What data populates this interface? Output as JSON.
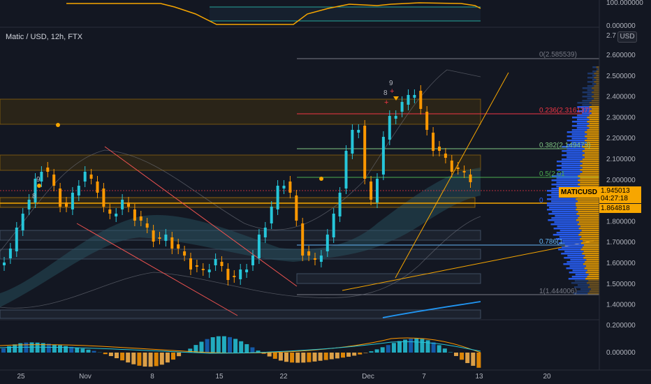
{
  "symbol_title": "Matic / USD, 12h, FTX",
  "currency_label": "USD",
  "colors": {
    "up": "#26c6da",
    "down": "#ff9800",
    "bg": "#131722",
    "fib": "#787b86",
    "orange": "#f7a600"
  },
  "price_axis": {
    "labels": [
      "2.600000",
      "2.500000",
      "2.400000",
      "2.300000",
      "2.200000",
      "2.100000",
      "2.000000",
      "1.900000",
      "1.800000",
      "1.700000",
      "1.600000",
      "1.500000",
      "1.400000"
    ],
    "top_partial": "2.7",
    "osc_top": "100.000000",
    "osc_bottom": "0.000000"
  },
  "macd_axis": {
    "labels": [
      "0.200000",
      "0.000000"
    ]
  },
  "time_axis": {
    "labels": [
      "25",
      "Nov",
      "8",
      "15",
      "22",
      "Dec",
      "7",
      "13",
      "20"
    ]
  },
  "fib_levels": [
    {
      "label": "0(2.585539)",
      "color": "#787b86"
    },
    {
      "label": "0.236(2.316137)",
      "color": "#f23645"
    },
    {
      "label": "0.382(2.149473)",
      "color": "#81c784"
    },
    {
      "label": "0.5(2.01",
      "color": "#4caf50"
    },
    {
      "label": "0",
      "color": "#2962ff"
    },
    {
      "label": "0.786(1.",
      "color": "#64b5f6"
    },
    {
      "label": "1(1.444006)",
      "color": "#787b86"
    }
  ],
  "td_labels": {
    "left_9": "9",
    "left_8": "8",
    "right_9": "9",
    "right_8": "8"
  },
  "current_price": {
    "ticker": "MATICUSD",
    "price": "1.945013",
    "countdown": "04:27:18",
    "level2": "1.864818"
  }
}
